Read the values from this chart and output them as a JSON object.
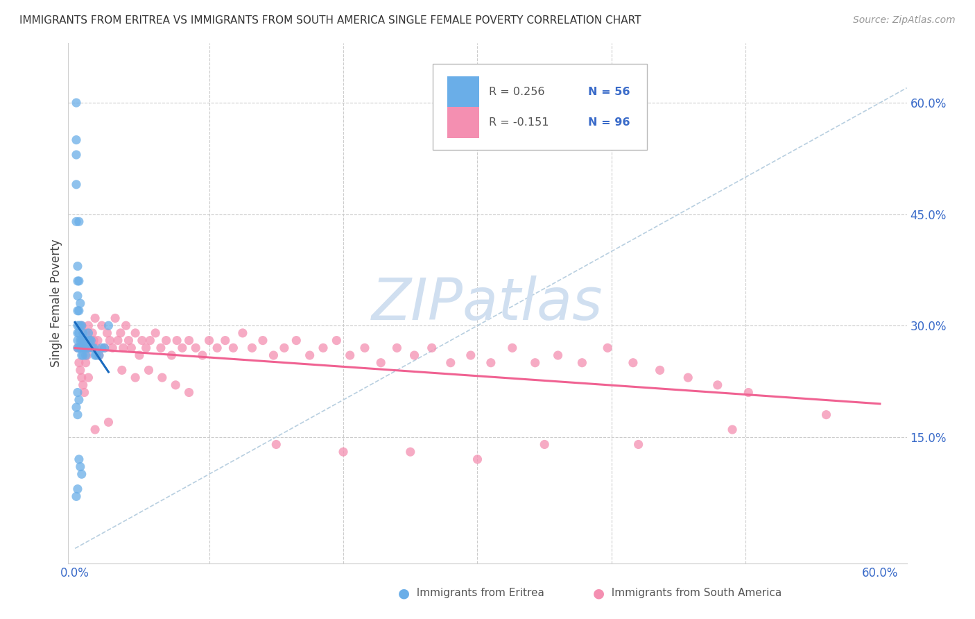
{
  "title": "IMMIGRANTS FROM ERITREA VS IMMIGRANTS FROM SOUTH AMERICA SINGLE FEMALE POVERTY CORRELATION CHART",
  "source": "Source: ZipAtlas.com",
  "ylabel": "Single Female Poverty",
  "xlim": [
    -0.005,
    0.62
  ],
  "ylim": [
    -0.02,
    0.68
  ],
  "ytick_vals": [
    0.15,
    0.3,
    0.45,
    0.6
  ],
  "ytick_labels": [
    "15.0%",
    "30.0%",
    "45.0%",
    "60.0%"
  ],
  "xtick_vals": [
    0.0,
    0.1,
    0.2,
    0.3,
    0.4,
    0.5,
    0.6
  ],
  "xtick_show": [
    "0.0%",
    "",
    "",
    "",
    "",
    "",
    "60.0%"
  ],
  "eritrea_color": "#6aaee8",
  "south_america_color": "#f48fb1",
  "eritrea_line_color": "#1a6bbf",
  "south_america_line_color": "#f06292",
  "diagonal_color": "#b8cfe0",
  "watermark_color": "#d0dff0",
  "grid_color": "#cccccc",
  "legend_r1": "R = 0.256",
  "legend_n1": "N = 56",
  "legend_r2": "R = -0.151",
  "legend_n2": "N = 96",
  "eritrea_x": [
    0.001,
    0.001,
    0.001,
    0.001,
    0.001,
    0.002,
    0.002,
    0.002,
    0.002,
    0.002,
    0.002,
    0.002,
    0.002,
    0.003,
    0.003,
    0.003,
    0.003,
    0.003,
    0.003,
    0.004,
    0.004,
    0.004,
    0.004,
    0.005,
    0.005,
    0.005,
    0.005,
    0.006,
    0.006,
    0.006,
    0.007,
    0.007,
    0.008,
    0.008,
    0.009,
    0.01,
    0.01,
    0.011,
    0.012,
    0.013,
    0.014,
    0.015,
    0.016,
    0.018,
    0.02,
    0.022,
    0.025,
    0.001,
    0.002,
    0.003,
    0.004,
    0.005,
    0.002,
    0.003,
    0.001,
    0.002
  ],
  "eritrea_y": [
    0.6,
    0.55,
    0.53,
    0.49,
    0.44,
    0.38,
    0.36,
    0.34,
    0.32,
    0.3,
    0.29,
    0.28,
    0.27,
    0.44,
    0.36,
    0.32,
    0.3,
    0.29,
    0.27,
    0.33,
    0.3,
    0.28,
    0.27,
    0.3,
    0.28,
    0.27,
    0.26,
    0.29,
    0.27,
    0.26,
    0.28,
    0.27,
    0.28,
    0.26,
    0.27,
    0.29,
    0.27,
    0.28,
    0.28,
    0.27,
    0.27,
    0.26,
    0.26,
    0.26,
    0.27,
    0.27,
    0.3,
    0.19,
    0.18,
    0.12,
    0.11,
    0.1,
    0.21,
    0.2,
    0.07,
    0.08
  ],
  "sa_x": [
    0.002,
    0.003,
    0.004,
    0.005,
    0.005,
    0.006,
    0.006,
    0.007,
    0.007,
    0.008,
    0.008,
    0.009,
    0.01,
    0.01,
    0.011,
    0.012,
    0.013,
    0.014,
    0.015,
    0.016,
    0.017,
    0.018,
    0.02,
    0.022,
    0.024,
    0.026,
    0.028,
    0.03,
    0.032,
    0.034,
    0.036,
    0.038,
    0.04,
    0.042,
    0.045,
    0.048,
    0.05,
    0.053,
    0.056,
    0.06,
    0.064,
    0.068,
    0.072,
    0.076,
    0.08,
    0.085,
    0.09,
    0.095,
    0.1,
    0.106,
    0.112,
    0.118,
    0.125,
    0.132,
    0.14,
    0.148,
    0.156,
    0.165,
    0.175,
    0.185,
    0.195,
    0.205,
    0.216,
    0.228,
    0.24,
    0.253,
    0.266,
    0.28,
    0.295,
    0.31,
    0.326,
    0.343,
    0.36,
    0.378,
    0.397,
    0.416,
    0.436,
    0.457,
    0.479,
    0.502,
    0.15,
    0.2,
    0.25,
    0.3,
    0.015,
    0.025,
    0.035,
    0.045,
    0.055,
    0.065,
    0.075,
    0.085,
    0.35,
    0.42,
    0.49,
    0.56
  ],
  "sa_y": [
    0.27,
    0.25,
    0.24,
    0.3,
    0.23,
    0.28,
    0.22,
    0.27,
    0.21,
    0.29,
    0.25,
    0.26,
    0.3,
    0.23,
    0.28,
    0.27,
    0.29,
    0.28,
    0.31,
    0.27,
    0.28,
    0.26,
    0.3,
    0.27,
    0.29,
    0.28,
    0.27,
    0.31,
    0.28,
    0.29,
    0.27,
    0.3,
    0.28,
    0.27,
    0.29,
    0.26,
    0.28,
    0.27,
    0.28,
    0.29,
    0.27,
    0.28,
    0.26,
    0.28,
    0.27,
    0.28,
    0.27,
    0.26,
    0.28,
    0.27,
    0.28,
    0.27,
    0.29,
    0.27,
    0.28,
    0.26,
    0.27,
    0.28,
    0.26,
    0.27,
    0.28,
    0.26,
    0.27,
    0.25,
    0.27,
    0.26,
    0.27,
    0.25,
    0.26,
    0.25,
    0.27,
    0.25,
    0.26,
    0.25,
    0.27,
    0.25,
    0.24,
    0.23,
    0.22,
    0.21,
    0.14,
    0.13,
    0.13,
    0.12,
    0.16,
    0.17,
    0.24,
    0.23,
    0.24,
    0.23,
    0.22,
    0.21,
    0.14,
    0.14,
    0.16,
    0.18
  ]
}
